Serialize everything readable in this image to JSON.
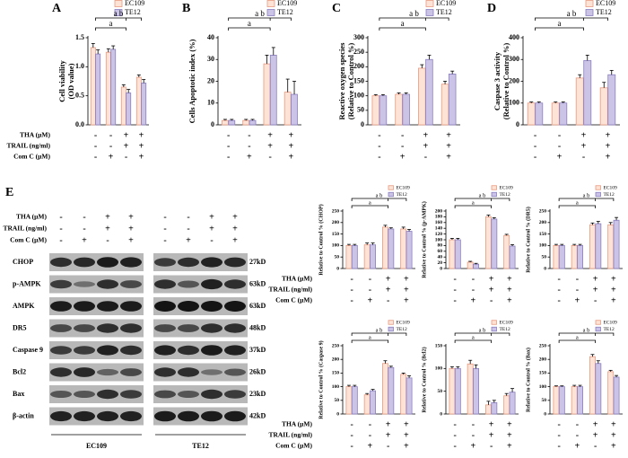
{
  "chart_data": [
    {
      "type": "bar",
      "panel": "A",
      "ylabel": [
        "Cell viability",
        "(OD value)"
      ],
      "categories": [
        null,
        null,
        null,
        null
      ],
      "series": [
        {
          "name": "EC109",
          "color": "#fde3d6",
          "edge": "#e89a80",
          "values": [
            1.33,
            1.25,
            0.65,
            0.82
          ],
          "errors": [
            0.07,
            0.06,
            0.04,
            0.04
          ]
        },
        {
          "name": "TE12",
          "color": "#cbc4e6",
          "edge": "#8c7fc0",
          "values": [
            1.22,
            1.3,
            0.55,
            0.72
          ],
          "errors": [
            0.07,
            0.06,
            0.06,
            0.06
          ]
        }
      ],
      "ylim": [
        0,
        1.5
      ],
      "yticks": [
        {
          "value": 0,
          "label": "0.0"
        },
        {
          "value": 0.5,
          "label": "0.5"
        },
        {
          "value": 1,
          "label": "1.0"
        },
        {
          "value": 1.5,
          "label": "1.5"
        }
      ],
      "brackets": [
        "a b",
        "a"
      ],
      "treatments": {
        "labels": [
          "THA (μM)",
          "TRAIL (ng/ml)",
          "Com C (μM)"
        ],
        "signs": [
          [
            "-",
            "-",
            "+",
            "+"
          ],
          [
            "-",
            "-",
            "+",
            "+"
          ],
          [
            "-",
            "+",
            "-",
            "+"
          ]
        ]
      }
    },
    {
      "type": "bar",
      "panel": "B",
      "ylabel": [
        "Cells Apoptotic index (%)"
      ],
      "categories": [
        null,
        null,
        null,
        null
      ],
      "series": [
        {
          "name": "EC109",
          "color": "#fde3d6",
          "edge": "#e89a80",
          "values": [
            2,
            2,
            28,
            15
          ],
          "errors": [
            0.5,
            0.5,
            4,
            6
          ]
        },
        {
          "name": "TE12",
          "color": "#cbc4e6",
          "edge": "#8c7fc0",
          "values": [
            2,
            2,
            32,
            14
          ],
          "errors": [
            0.5,
            0.5,
            3.5,
            6
          ]
        }
      ],
      "ylim": [
        0,
        40
      ],
      "yticks": [
        0,
        10,
        20,
        30,
        40
      ],
      "brackets": [
        "a b",
        "a"
      ],
      "treatments": {
        "signs": [
          [
            "-",
            "-",
            "+",
            "+"
          ],
          [
            "-",
            "-",
            "+",
            "+"
          ],
          [
            "-",
            "+",
            "-",
            "+"
          ]
        ]
      }
    },
    {
      "type": "bar",
      "panel": "C",
      "ylabel": [
        "Reactive oxygen species",
        "(Relative to Control %)"
      ],
      "categories": [
        null,
        null,
        null,
        null
      ],
      "series": [
        {
          "name": "EC109",
          "color": "#fde3d6",
          "edge": "#e89a80",
          "values": [
            100,
            105,
            195,
            140
          ],
          "errors": [
            4,
            5,
            12,
            10
          ]
        },
        {
          "name": "TE12",
          "color": "#cbc4e6",
          "edge": "#8c7fc0",
          "values": [
            100,
            105,
            225,
            175
          ],
          "errors": [
            4,
            5,
            15,
            10
          ]
        }
      ],
      "ylim": [
        0,
        300
      ],
      "yticks": [
        0,
        50,
        100,
        150,
        200,
        250,
        300
      ],
      "brackets": [
        "a b",
        "a"
      ],
      "treatments": {
        "signs": [
          [
            "-",
            "-",
            "+",
            "+"
          ],
          [
            "-",
            "-",
            "+",
            "+"
          ],
          [
            "-",
            "+",
            "-",
            "+"
          ]
        ]
      }
    },
    {
      "type": "bar",
      "panel": "D",
      "ylabel": [
        "Caspase 3 activity",
        "(Relative to Control %)"
      ],
      "categories": [
        null,
        null,
        null,
        null
      ],
      "series": [
        {
          "name": "EC109",
          "color": "#fde3d6",
          "edge": "#e89a80",
          "values": [
            100,
            100,
            215,
            170
          ],
          "errors": [
            5,
            5,
            15,
            25
          ]
        },
        {
          "name": "TE12",
          "color": "#cbc4e6",
          "edge": "#8c7fc0",
          "values": [
            100,
            100,
            295,
            230
          ],
          "errors": [
            5,
            5,
            25,
            20
          ]
        }
      ],
      "ylim": [
        0,
        400
      ],
      "yticks": [
        0,
        100,
        200,
        300,
        400
      ],
      "brackets": [
        "a b",
        "a"
      ],
      "treatments": {
        "signs": [
          [
            "-",
            "-",
            "+",
            "+"
          ],
          [
            "-",
            "-",
            "+",
            "+"
          ],
          [
            "-",
            "+",
            "-",
            "+"
          ]
        ]
      }
    },
    {
      "type": "bar",
      "ylabel": [
        "Relative to Control % (CHOP)"
      ],
      "categories": [
        null,
        null,
        null,
        null
      ],
      "series": [
        {
          "name": "EC109",
          "color": "#fde3d6",
          "edge": "#e89a80",
          "values": [
            100,
            103,
            180,
            172
          ],
          "errors": [
            5,
            8,
            8,
            8
          ]
        },
        {
          "name": "TE12",
          "color": "#cbc4e6",
          "edge": "#8c7fc0",
          "values": [
            100,
            103,
            172,
            162
          ],
          "errors": [
            5,
            8,
            5,
            8
          ]
        }
      ],
      "ylim": [
        0,
        250
      ],
      "yticks": [
        0,
        50,
        100,
        150,
        200,
        250
      ],
      "brackets": [
        "a b",
        "a"
      ],
      "treatments": {
        "labels": [
          "THA (μM)",
          "TRAIL (ng/ml)",
          "Com C (μM)"
        ],
        "signs": [
          [
            "-",
            "-",
            "+",
            "+"
          ],
          [
            "-",
            "-",
            "+",
            "+"
          ],
          [
            "-",
            "+",
            "-",
            "+"
          ]
        ]
      }
    },
    {
      "type": "bar",
      "ylabel": [
        "Relative to Control % (p-AMPK)"
      ],
      "categories": [
        null,
        null,
        null,
        null
      ],
      "series": [
        {
          "name": "EC109",
          "color": "#fde3d6",
          "edge": "#e89a80",
          "values": [
            100,
            22,
            180,
            115
          ],
          "errors": [
            5,
            3,
            6,
            4
          ]
        },
        {
          "name": "TE12",
          "color": "#cbc4e6",
          "edge": "#8c7fc0",
          "values": [
            100,
            15,
            172,
            78
          ],
          "errors": [
            5,
            3,
            5,
            5
          ]
        }
      ],
      "ylim": [
        0,
        200
      ],
      "yticks": [
        0,
        20,
        40,
        60,
        80,
        100,
        120,
        140,
        160,
        180,
        200
      ],
      "brackets": [
        "a b",
        "a"
      ],
      "treatments": {
        "signs": [
          [
            "-",
            "-",
            "+",
            "+"
          ],
          [
            "-",
            "-",
            "+",
            "+"
          ],
          [
            "-",
            "+",
            "-",
            "+"
          ]
        ]
      }
    },
    {
      "type": "bar",
      "ylabel": [
        "Relative to Control % (DR5)"
      ],
      "categories": [
        null,
        null,
        null,
        null
      ],
      "series": [
        {
          "name": "EC109",
          "color": "#fde3d6",
          "edge": "#e89a80",
          "values": [
            100,
            100,
            190,
            190
          ],
          "errors": [
            5,
            5,
            8,
            10
          ]
        },
        {
          "name": "TE12",
          "color": "#cbc4e6",
          "edge": "#8c7fc0",
          "values": [
            100,
            100,
            195,
            210
          ],
          "errors": [
            5,
            5,
            10,
            12
          ]
        }
      ],
      "ylim": [
        0,
        250
      ],
      "yticks": [
        0,
        50,
        100,
        150,
        200,
        250
      ],
      "brackets": [
        "a b",
        "a"
      ],
      "treatments": {
        "signs": [
          [
            "-",
            "-",
            "+",
            "+"
          ],
          [
            "-",
            "-",
            "+",
            "+"
          ],
          [
            "-",
            "+",
            "-",
            "+"
          ]
        ]
      }
    },
    {
      "type": "bar",
      "ylabel": [
        "Relative to Control % (Caspase 9)"
      ],
      "categories": [
        null,
        null,
        null,
        null
      ],
      "series": [
        {
          "name": "EC109",
          "color": "#fde3d6",
          "edge": "#e89a80",
          "values": [
            100,
            70,
            185,
            145
          ],
          "errors": [
            5,
            5,
            10,
            5
          ]
        },
        {
          "name": "TE12",
          "color": "#cbc4e6",
          "edge": "#8c7fc0",
          "values": [
            100,
            85,
            170,
            132
          ],
          "errors": [
            5,
            5,
            5,
            8
          ]
        }
      ],
      "ylim": [
        0,
        250
      ],
      "yticks": [
        0,
        50,
        100,
        150,
        200,
        250
      ],
      "brackets": [
        "a b",
        "a"
      ],
      "treatments": {
        "labels": [
          "THA (μM)",
          "TRAIL (ng/ml)",
          "Com C (μM)"
        ],
        "signs": [
          [
            "-",
            "-",
            "+",
            "+"
          ],
          [
            "-",
            "-",
            "+",
            "+"
          ],
          [
            "-",
            "+",
            "-",
            "+"
          ]
        ]
      }
    },
    {
      "type": "bar",
      "ylabel": [
        "Relative to Control % (Bcl2)"
      ],
      "categories": [
        null,
        null,
        null,
        null
      ],
      "series": [
        {
          "name": "EC109",
          "color": "#fde3d6",
          "edge": "#e89a80",
          "values": [
            100,
            110,
            20,
            40
          ],
          "errors": [
            4,
            8,
            8,
            5
          ]
        },
        {
          "name": "TE12",
          "color": "#cbc4e6",
          "edge": "#8c7fc0",
          "values": [
            100,
            100,
            25,
            48
          ],
          "errors": [
            4,
            8,
            5,
            8
          ]
        }
      ],
      "ylim": [
        0,
        150
      ],
      "yticks": [
        0,
        50,
        100,
        150
      ],
      "brackets": [
        "a b",
        "a"
      ],
      "treatments": {
        "signs": [
          [
            "-",
            "-",
            "+",
            "+"
          ],
          [
            "-",
            "-",
            "+",
            "+"
          ],
          [
            "-",
            "+",
            "-",
            "+"
          ]
        ]
      }
    },
    {
      "type": "bar",
      "ylabel": [
        "Relative to Control % (Bax)"
      ],
      "categories": [
        null,
        null,
        null,
        null
      ],
      "series": [
        {
          "name": "EC109",
          "color": "#fde3d6",
          "edge": "#e89a80",
          "values": [
            100,
            100,
            210,
            155
          ],
          "errors": [
            3,
            5,
            8,
            5
          ]
        },
        {
          "name": "TE12",
          "color": "#cbc4e6",
          "edge": "#8c7fc0",
          "values": [
            100,
            100,
            185,
            135
          ],
          "errors": [
            3,
            5,
            10,
            6
          ]
        }
      ],
      "ylim": [
        0,
        250
      ],
      "yticks": [
        0,
        50,
        100,
        150,
        200,
        250
      ],
      "brackets": [
        "a b",
        "a"
      ],
      "treatments": {
        "signs": [
          [
            "-",
            "-",
            "+",
            "+"
          ],
          [
            "-",
            "-",
            "+",
            "+"
          ],
          [
            "-",
            "+",
            "-",
            "+"
          ]
        ]
      }
    }
  ],
  "blot": {
    "panel": "E",
    "treatments": {
      "labels": [
        "THA (μM)",
        "TRAIL (ng/ml)",
        "Com C (μM)"
      ],
      "signs": [
        [
          "-",
          "-",
          "+",
          "+",
          "-",
          "-",
          "+",
          "+"
        ],
        [
          "-",
          "-",
          "+",
          "+",
          "-",
          "-",
          "+",
          "+"
        ],
        [
          "-",
          "+",
          "-",
          "+",
          "-",
          "+",
          "-",
          "+"
        ]
      ]
    },
    "rows": [
      {
        "label": "CHOP",
        "size": "27kD"
      },
      {
        "label": "p-AMPK",
        "size": "63kD"
      },
      {
        "label": "AMPK",
        "size": "63kD"
      },
      {
        "label": "DR5",
        "size": "48kD"
      },
      {
        "label": "Caspase 9",
        "size": "37kD"
      },
      {
        "label": "Bcl2",
        "size": "26kD"
      },
      {
        "label": "Bax",
        "size": "23kD"
      },
      {
        "label": "β-actin",
        "size": "42kD"
      }
    ],
    "groups": [
      "EC109",
      "TE12"
    ]
  }
}
